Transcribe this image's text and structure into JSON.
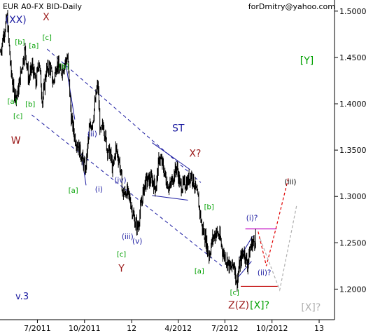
{
  "window": {
    "title": "EUR A0-FX BID-Daily",
    "email": "forDmitry@yahoo.com",
    "version": "v.3"
  },
  "chart_data": {
    "type": "line",
    "title": "EUR A0-FX BID-Daily",
    "xlabel": "",
    "ylabel": "",
    "x_ticks": [
      "7/2011",
      "10/2011",
      "12",
      "4/2012",
      "7/2012",
      "10/2012",
      "13"
    ],
    "y_ticks": [
      "1.5000",
      "1.4500",
      "1.4000",
      "1.3500",
      "1.3000",
      "1.2500",
      "1.2000"
    ],
    "ylim": [
      1.167,
      1.512
    ],
    "xlim": [
      "2011-04-19",
      "2013-01-31"
    ],
    "grid": false,
    "price_series": {
      "name": "EURUSD",
      "color": "#000000",
      "points": [
        [
          "2011-04-20",
          1.456
        ],
        [
          "2011-04-27",
          1.478
        ],
        [
          "2011-05-03",
          1.492
        ],
        [
          "2011-05-10",
          1.438
        ],
        [
          "2011-05-16",
          1.412
        ],
        [
          "2011-05-23",
          1.409
        ],
        [
          "2011-05-31",
          1.438
        ],
        [
          "2011-06-07",
          1.459
        ],
        [
          "2011-06-14",
          1.425
        ],
        [
          "2011-06-21",
          1.441
        ],
        [
          "2011-06-28",
          1.421
        ],
        [
          "2011-07-04",
          1.448
        ],
        [
          "2011-07-11",
          1.402
        ],
        [
          "2011-07-18",
          1.435
        ],
        [
          "2011-07-25",
          1.441
        ],
        [
          "2011-08-01",
          1.422
        ],
        [
          "2011-08-08",
          1.445
        ],
        [
          "2011-08-15",
          1.433
        ],
        [
          "2011-08-22",
          1.442
        ],
        [
          "2011-08-29",
          1.451
        ],
        [
          "2011-09-05",
          1.385
        ],
        [
          "2011-09-12",
          1.364
        ],
        [
          "2011-09-19",
          1.354
        ],
        [
          "2011-09-26",
          1.342
        ],
        [
          "2011-10-03",
          1.328
        ],
        [
          "2011-10-10",
          1.371
        ],
        [
          "2011-10-17",
          1.382
        ],
        [
          "2011-10-24",
          1.411
        ],
        [
          "2011-10-27",
          1.421
        ],
        [
          "2011-11-01",
          1.367
        ],
        [
          "2011-11-07",
          1.378
        ],
        [
          "2011-11-14",
          1.352
        ],
        [
          "2011-11-21",
          1.345
        ],
        [
          "2011-11-25",
          1.328
        ],
        [
          "2011-12-01",
          1.352
        ],
        [
          "2011-12-08",
          1.338
        ],
        [
          "2011-12-15",
          1.302
        ],
        [
          "2011-12-22",
          1.306
        ],
        [
          "2011-12-29",
          1.296
        ],
        [
          "2012-01-06",
          1.275
        ],
        [
          "2012-01-13",
          1.266
        ],
        [
          "2012-01-20",
          1.293
        ],
        [
          "2012-01-27",
          1.315
        ],
        [
          "2012-02-03",
          1.318
        ],
        [
          "2012-02-10",
          1.318
        ],
        [
          "2012-02-17",
          1.309
        ],
        [
          "2012-02-24",
          1.342
        ],
        [
          "2012-03-01",
          1.335
        ],
        [
          "2012-03-08",
          1.318
        ],
        [
          "2012-03-15",
          1.309
        ],
        [
          "2012-03-22",
          1.321
        ],
        [
          "2012-03-29",
          1.332
        ],
        [
          "2012-04-05",
          1.311
        ],
        [
          "2012-04-12",
          1.312
        ],
        [
          "2012-04-19",
          1.316
        ],
        [
          "2012-04-26",
          1.324
        ],
        [
          "2012-05-03",
          1.312
        ],
        [
          "2012-05-10",
          1.296
        ],
        [
          "2012-05-17",
          1.268
        ],
        [
          "2012-05-24",
          1.255
        ],
        [
          "2012-05-31",
          1.236
        ],
        [
          "2012-06-07",
          1.254
        ],
        [
          "2012-06-14",
          1.262
        ],
        [
          "2012-06-21",
          1.256
        ],
        [
          "2012-06-28",
          1.238
        ],
        [
          "2012-07-05",
          1.231
        ],
        [
          "2012-07-12",
          1.222
        ],
        [
          "2012-07-19",
          1.228
        ],
        [
          "2012-07-24",
          1.206
        ],
        [
          "2012-07-31",
          1.23
        ],
        [
          "2012-08-07",
          1.241
        ],
        [
          "2012-08-14",
          1.227
        ],
        [
          "2012-08-21",
          1.248
        ],
        [
          "2012-08-28",
          1.252
        ],
        [
          "2012-08-31",
          1.259
        ]
      ]
    },
    "horizontal_levels": [
      {
        "name": "upper-level",
        "y": 1.265,
        "x0": "2012-08-10",
        "x1": "2012-10-10",
        "color": "#c000c0"
      },
      {
        "name": "lower-level",
        "y": 1.203,
        "x0": "2012-08-01",
        "x1": "2012-10-12",
        "color": "#c00000"
      }
    ],
    "channel_lines": [
      {
        "name": "channel-upper-line",
        "x0": "2011-07-20",
        "y0": 1.459,
        "x1": "2012-05-15",
        "y1": 1.315,
        "color": "#1a1aa0",
        "dashed": true
      },
      {
        "name": "channel-lower-line",
        "x0": "2011-06-20",
        "y0": 1.388,
        "x1": "2012-06-25",
        "y1": 1.225,
        "color": "#1a1aa0",
        "dashed": true
      },
      {
        "name": "st-upper-line",
        "x0": "2012-02-10",
        "y0": 1.358,
        "x1": "2012-04-24",
        "y1": 1.329,
        "color": "#1a1aa0",
        "dashed": false
      },
      {
        "name": "st-lower-line",
        "x0": "2012-02-10",
        "y0": 1.301,
        "x1": "2012-04-20",
        "y1": 1.296,
        "color": "#1a1aa0",
        "dashed": false
      },
      {
        "name": "wedge-upper-line",
        "x0": "2012-07-30",
        "y0": 1.234,
        "x1": "2012-08-24",
        "y1": 1.257,
        "color": "#1a1aa0",
        "dashed": false
      },
      {
        "name": "wedge-lower-line",
        "x0": "2012-07-27",
        "y0": 1.213,
        "x1": "2012-08-22",
        "y1": 1.23,
        "color": "#1a1aa0",
        "dashed": false
      },
      {
        "name": "c-wave-upper-line",
        "x0": "2011-08-24",
        "y0": 1.448,
        "x1": "2011-09-12",
        "y1": 1.383,
        "color": "#1a1aa0",
        "dashed": false
      },
      {
        "name": "c-wave-lower-line",
        "x0": "2011-09-26",
        "y0": 1.342,
        "x1": "2011-10-04",
        "y1": 1.312,
        "color": "#1a1aa0",
        "dashed": false
      }
    ],
    "forecast_paths": [
      {
        "name": "forecast-red-path",
        "color": "#e00000",
        "points": [
          [
            "2012-09-04",
            1.262
          ],
          [
            "2012-09-20",
            1.225
          ],
          [
            "2012-10-08",
            1.264
          ],
          [
            "2012-11-02",
            1.32
          ]
        ]
      },
      {
        "name": "forecast-gray-path",
        "color": "#b0b0b0",
        "points": [
          [
            "2012-09-08",
            1.254
          ],
          [
            "2012-10-16",
            1.199
          ],
          [
            "2012-11-18",
            1.29
          ]
        ]
      }
    ],
    "annotations": [
      {
        "text": "(XX)",
        "x": "2011-05-20",
        "y": 1.487,
        "color": "#1a1aa0"
      },
      {
        "text": "X",
        "x": "2011-07-18",
        "y": 1.49,
        "color": "#9b1b1b"
      },
      {
        "text": "[b]",
        "x": "2011-05-28",
        "y": 1.464,
        "color": "#00a000"
      },
      {
        "text": "[a]",
        "x": "2011-06-24",
        "y": 1.46,
        "color": "#00a000"
      },
      {
        "text": "[c]",
        "x": "2011-07-20",
        "y": 1.469,
        "color": "#00a000"
      },
      {
        "text": "[b]",
        "x": "2011-08-22",
        "y": 1.438,
        "color": "#00a000"
      },
      {
        "text": "[a]",
        "x": "2011-05-13",
        "y": 1.4,
        "color": "#00a000"
      },
      {
        "text": "[b]",
        "x": "2011-06-17",
        "y": 1.397,
        "color": "#00a000"
      },
      {
        "text": "[c]",
        "x": "2011-05-24",
        "y": 1.384,
        "color": "#00a000"
      },
      {
        "text": "W",
        "x": "2011-05-20",
        "y": 1.357,
        "color": "#9b1b1b"
      },
      {
        "text": "[Y]",
        "x": "2012-12-08",
        "y": 1.443,
        "color": "#00a000"
      },
      {
        "text": "(ii)",
        "x": "2011-10-16",
        "y": 1.365,
        "color": "#1a1aa0"
      },
      {
        "text": "ST",
        "x": "2012-04-01",
        "y": 1.37,
        "color": "#1a1aa0"
      },
      {
        "text": "X?",
        "x": "2012-05-04",
        "y": 1.343,
        "color": "#9b1b1b"
      },
      {
        "text": "[a]",
        "x": "2011-09-09",
        "y": 1.304,
        "color": "#00a000"
      },
      {
        "text": "(i)",
        "x": "2011-10-29",
        "y": 1.305,
        "color": "#1a1aa0"
      },
      {
        "text": "(iv)",
        "x": "2011-12-10",
        "y": 1.315,
        "color": "#1a1aa0"
      },
      {
        "text": "(iii)",
        "x": "2011-12-24",
        "y": 1.254,
        "color": "#1a1aa0"
      },
      {
        "text": "(v)",
        "x": "2012-01-12",
        "y": 1.249,
        "color": "#1a1aa0"
      },
      {
        "text": "[c]",
        "x": "2011-12-12",
        "y": 1.235,
        "color": "#00a000"
      },
      {
        "text": "Y",
        "x": "2011-12-12",
        "y": 1.219,
        "color": "#9b1b1b"
      },
      {
        "text": "[b]",
        "x": "2012-05-31",
        "y": 1.286,
        "color": "#00a000"
      },
      {
        "text": "[a]",
        "x": "2012-05-12",
        "y": 1.217,
        "color": "#00a000"
      },
      {
        "text": "(i)?",
        "x": "2012-08-23",
        "y": 1.274,
        "color": "#1a1aa0"
      },
      {
        "text": "(ii)?",
        "x": "2012-09-16",
        "y": 1.215,
        "color": "#1a1aa0"
      },
      {
        "text": "(iii)",
        "x": "2012-11-06",
        "y": 1.313,
        "color": "#000000"
      },
      {
        "text": "[c]",
        "x": "2012-07-20",
        "y": 1.194,
        "color": "#00a000"
      },
      {
        "text": "Z(Z)",
        "x": "2012-07-28",
        "y": 1.179,
        "color": "#9b1b1b"
      },
      {
        "text": "[X]?",
        "x": "2012-09-07",
        "y": 1.179,
        "color": "#00a000"
      },
      {
        "text": "[X]?",
        "x": "2012-12-16",
        "y": 1.177,
        "color": "#b0b0b0"
      }
    ]
  }
}
